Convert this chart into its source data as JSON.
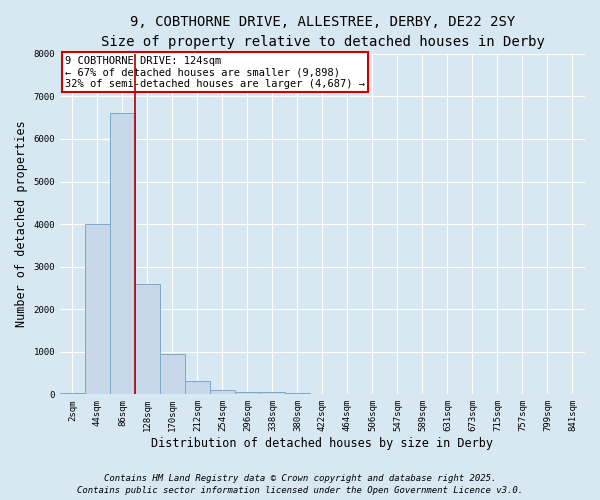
{
  "title_line1": "9, COBTHORNE DRIVE, ALLESTREE, DERBY, DE22 2SY",
  "title_line2": "Size of property relative to detached houses in Derby",
  "xlabel": "Distribution of detached houses by size in Derby",
  "ylabel": "Number of detached properties",
  "bar_categories": [
    "2sqm",
    "44sqm",
    "86sqm",
    "128sqm",
    "170sqm",
    "212sqm",
    "254sqm",
    "296sqm",
    "338sqm",
    "380sqm",
    "422sqm",
    "464sqm",
    "506sqm",
    "547sqm",
    "589sqm",
    "631sqm",
    "673sqm",
    "715sqm",
    "757sqm",
    "799sqm",
    "841sqm"
  ],
  "bar_values": [
    30,
    4000,
    6600,
    2600,
    950,
    310,
    100,
    50,
    50,
    30,
    8,
    4,
    2,
    1,
    1,
    0,
    0,
    0,
    0,
    0,
    0
  ],
  "bar_color": "#c8d8ea",
  "bar_edge_color": "#7aaac8",
  "annotation_line1": "9 COBTHORNE DRIVE: 124sqm",
  "annotation_line2": "← 67% of detached houses are smaller (9,898)",
  "annotation_line3": "32% of semi-detached houses are larger (4,687) →",
  "annotation_box_color": "#cc0000",
  "vline_color": "#aa0000",
  "ylim": [
    0,
    8000
  ],
  "background_color": "#d8e8f2",
  "plot_bg_color": "#d8e8f2",
  "grid_color": "#ffffff",
  "footer_line1": "Contains HM Land Registry data © Crown copyright and database right 2025.",
  "footer_line2": "Contains public sector information licensed under the Open Government Licence v3.0.",
  "title_fontsize": 10,
  "subtitle_fontsize": 9,
  "axis_label_fontsize": 8.5,
  "tick_fontsize": 6.5,
  "annotation_fontsize": 7.5,
  "footer_fontsize": 6.5
}
